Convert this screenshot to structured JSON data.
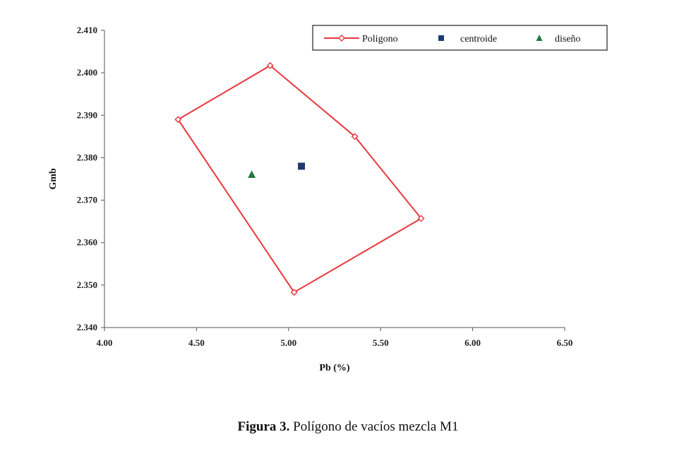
{
  "chart_data": {
    "type": "scatter",
    "xlabel": "Pb (%)",
    "ylabel": "Gmb",
    "xlim": [
      4.0,
      6.5
    ],
    "ylim": [
      2.34,
      2.41
    ],
    "x_ticks": [
      "4.00",
      "4.50",
      "5.00",
      "5.50",
      "6.00",
      "6.50"
    ],
    "y_ticks": [
      "2.340",
      "2.350",
      "2.360",
      "2.370",
      "2.380",
      "2.390",
      "2.400",
      "2.410"
    ],
    "legend_position": "top-right",
    "grid": false,
    "series": [
      {
        "name": "Poligono",
        "kind": "polygon",
        "color": "#e8373d",
        "points": [
          {
            "x": 4.4,
            "y": 2.389
          },
          {
            "x": 4.9,
            "y": 2.4017
          },
          {
            "x": 5.36,
            "y": 2.385
          },
          {
            "x": 5.72,
            "y": 2.3657
          },
          {
            "x": 5.03,
            "y": 2.3483
          },
          {
            "x": 4.4,
            "y": 2.389
          }
        ]
      },
      {
        "name": "centroide",
        "kind": "square",
        "color": "#1f3a6e",
        "points": [
          {
            "x": 5.07,
            "y": 2.378
          }
        ]
      },
      {
        "name": "diseño",
        "kind": "triangle",
        "color": "#1e7a3e",
        "points": [
          {
            "x": 4.8,
            "y": 2.376
          }
        ]
      }
    ]
  },
  "caption": {
    "label": "Figura 3.",
    "text": " Polígono de vacíos mezcla M1"
  }
}
